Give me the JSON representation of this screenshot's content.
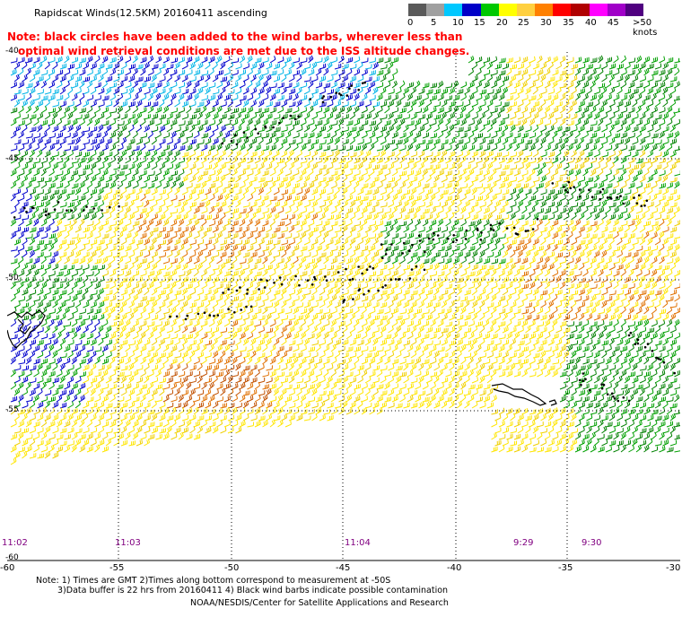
{
  "header": {
    "title": "Rapidscat Winds(12.5KM) 20160411 ascending",
    "note_line1": "Note: black circles have been added to the wind barbs, wherever less than",
    "note_line2": "optimal wind retrieval conditions are met due to the ISS altitude changes."
  },
  "color_scale": {
    "swatches": [
      "#5a5a5a",
      "#a0a0a0",
      "#00c8ff",
      "#0000c8",
      "#00c800",
      "#ffff00",
      "#ffd040",
      "#ff8000",
      "#ff0000",
      "#b00000",
      "#ff00ff",
      "#a000c8",
      "#500080"
    ],
    "labels": [
      "0",
      "5",
      "10",
      "15",
      "20",
      "25",
      "30",
      "35",
      "40",
      "45",
      ">50 knots"
    ]
  },
  "map": {
    "lon_labels": [
      "-60",
      "-55",
      "-50",
      "-45",
      "-40",
      "-35",
      "-30"
    ],
    "lat_labels": [
      "-40",
      "-45",
      "-50",
      "-55",
      "-60"
    ],
    "times": [
      "11:02",
      "11:03",
      "11:04",
      "9:29",
      "9:30"
    ],
    "barb_colors": {
      "blue": "#0000cc",
      "cyan": "#00b4e6",
      "green": "#00a000",
      "dgreen": "#008000",
      "yellow": "#ffe600",
      "lyellow": "#f0d000",
      "orange": "#e07000",
      "dorange": "#c05000",
      "black": "#000000"
    }
  },
  "footer": {
    "line1": "Note: 1) Times are GMT 2)Times along bottom correspond to measurement at -50S",
    "line2": "3)Data buffer is 22 hrs from 20160411 4) Black wind barbs indicate possible contamination",
    "line3": "NOAA/NESDIS/Center for Satellite Applications and Research"
  }
}
